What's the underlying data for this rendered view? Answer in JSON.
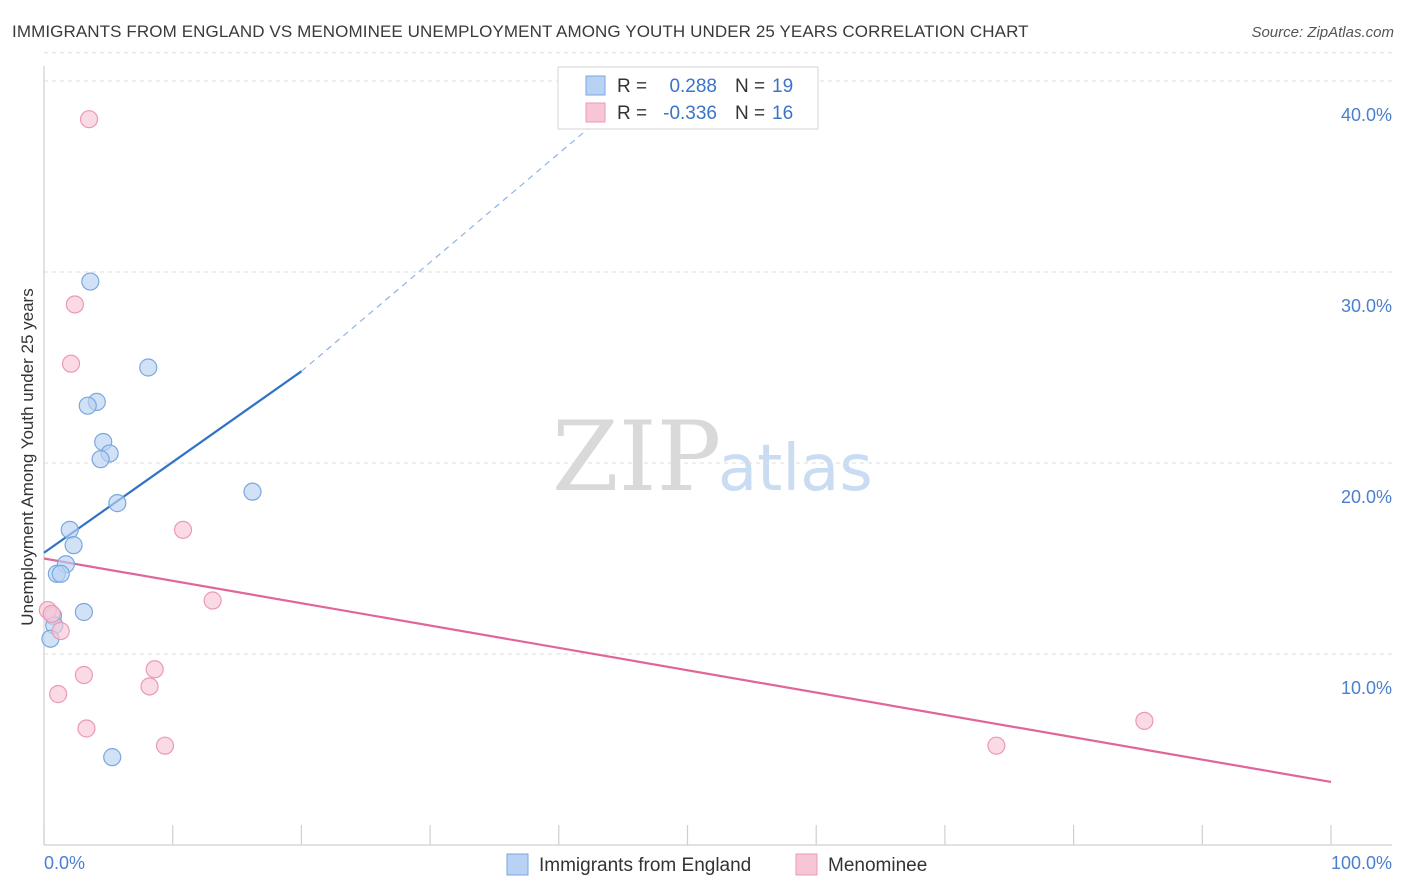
{
  "header": {
    "title": "IMMIGRANTS FROM ENGLAND VS MENOMINEE UNEMPLOYMENT AMONG YOUTH UNDER 25 YEARS CORRELATION CHART",
    "source": "Source: ZipAtlas.com"
  },
  "watermark": {
    "zip": "ZIP",
    "atlas": "atlas"
  },
  "legend": {
    "rows": [
      {
        "r_label": "R =",
        "r_value": "0.288",
        "n_label": "N =",
        "n_value": "19"
      },
      {
        "r_label": "R =",
        "r_value": "-0.336",
        "n_label": "N =",
        "n_value": "16"
      }
    ]
  },
  "bottom_legend": {
    "series1": "Immigrants from England",
    "series2": "Menominee"
  },
  "colors": {
    "blue_fill": "#b8d2f3",
    "blue_stroke": "#7aa7e0",
    "blue_line": "#2f72c8",
    "pink_fill": "#f7c6d6",
    "pink_stroke": "#eb9ab4",
    "pink_line": "#e0669a",
    "grid": "#dddddd",
    "tick_text": "#4a7fd0"
  },
  "chart_data": {
    "type": "scatter",
    "title": "IMMIGRANTS FROM ENGLAND VS MENOMINEE UNEMPLOYMENT AMONG YOUTH UNDER 25 YEARS CORRELATION CHART",
    "xlabel": "",
    "ylabel": "Unemployment Among Youth under 25 years",
    "xlim": [
      0,
      100
    ],
    "ylim": [
      0,
      42
    ],
    "x_tick_labels": [
      "0.0%",
      "100.0%"
    ],
    "y_ticks": [
      {
        "value": 10,
        "label": "10.0%"
      },
      {
        "value": 20,
        "label": "20.0%"
      },
      {
        "value": 30,
        "label": "30.0%"
      },
      {
        "value": 40,
        "label": "40.0%"
      }
    ],
    "series": [
      {
        "name": "Immigrants from England",
        "r": 0.288,
        "n": 19,
        "points": [
          {
            "x": 3.6,
            "y": 29.5
          },
          {
            "x": 8.1,
            "y": 25.0
          },
          {
            "x": 4.1,
            "y": 23.2
          },
          {
            "x": 3.4,
            "y": 23.0
          },
          {
            "x": 4.6,
            "y": 21.1
          },
          {
            "x": 5.1,
            "y": 20.5
          },
          {
            "x": 4.4,
            "y": 20.2
          },
          {
            "x": 16.2,
            "y": 18.5
          },
          {
            "x": 5.7,
            "y": 17.9
          },
          {
            "x": 2.0,
            "y": 16.5
          },
          {
            "x": 2.3,
            "y": 15.7
          },
          {
            "x": 1.7,
            "y": 14.7
          },
          {
            "x": 1.0,
            "y": 14.2
          },
          {
            "x": 1.3,
            "y": 14.2
          },
          {
            "x": 3.1,
            "y": 12.2
          },
          {
            "x": 0.7,
            "y": 12.0
          },
          {
            "x": 0.8,
            "y": 11.5
          },
          {
            "x": 0.5,
            "y": 10.8
          },
          {
            "x": 5.3,
            "y": 4.6
          }
        ],
        "trend": {
          "x0": 0,
          "y0": 15.3,
          "x1": 20,
          "y1": 24.8,
          "dashed_to_x": 47,
          "dashed_to_y": 40.2
        }
      },
      {
        "name": "Menominee",
        "r": -0.336,
        "n": 16,
        "points": [
          {
            "x": 3.5,
            "y": 38.0
          },
          {
            "x": 2.4,
            "y": 28.3
          },
          {
            "x": 2.1,
            "y": 25.2
          },
          {
            "x": 10.8,
            "y": 16.5
          },
          {
            "x": 13.1,
            "y": 12.8
          },
          {
            "x": 0.3,
            "y": 12.3
          },
          {
            "x": 0.6,
            "y": 12.1
          },
          {
            "x": 1.3,
            "y": 11.2
          },
          {
            "x": 8.6,
            "y": 9.2
          },
          {
            "x": 3.1,
            "y": 8.9
          },
          {
            "x": 8.2,
            "y": 8.3
          },
          {
            "x": 1.1,
            "y": 7.9
          },
          {
            "x": 3.3,
            "y": 6.1
          },
          {
            "x": 9.4,
            "y": 5.2
          },
          {
            "x": 85.5,
            "y": 6.5
          },
          {
            "x": 74.0,
            "y": 5.2
          }
        ],
        "trend": {
          "x0": 0,
          "y0": 15.0,
          "x1": 100,
          "y1": 3.3
        }
      }
    ]
  }
}
